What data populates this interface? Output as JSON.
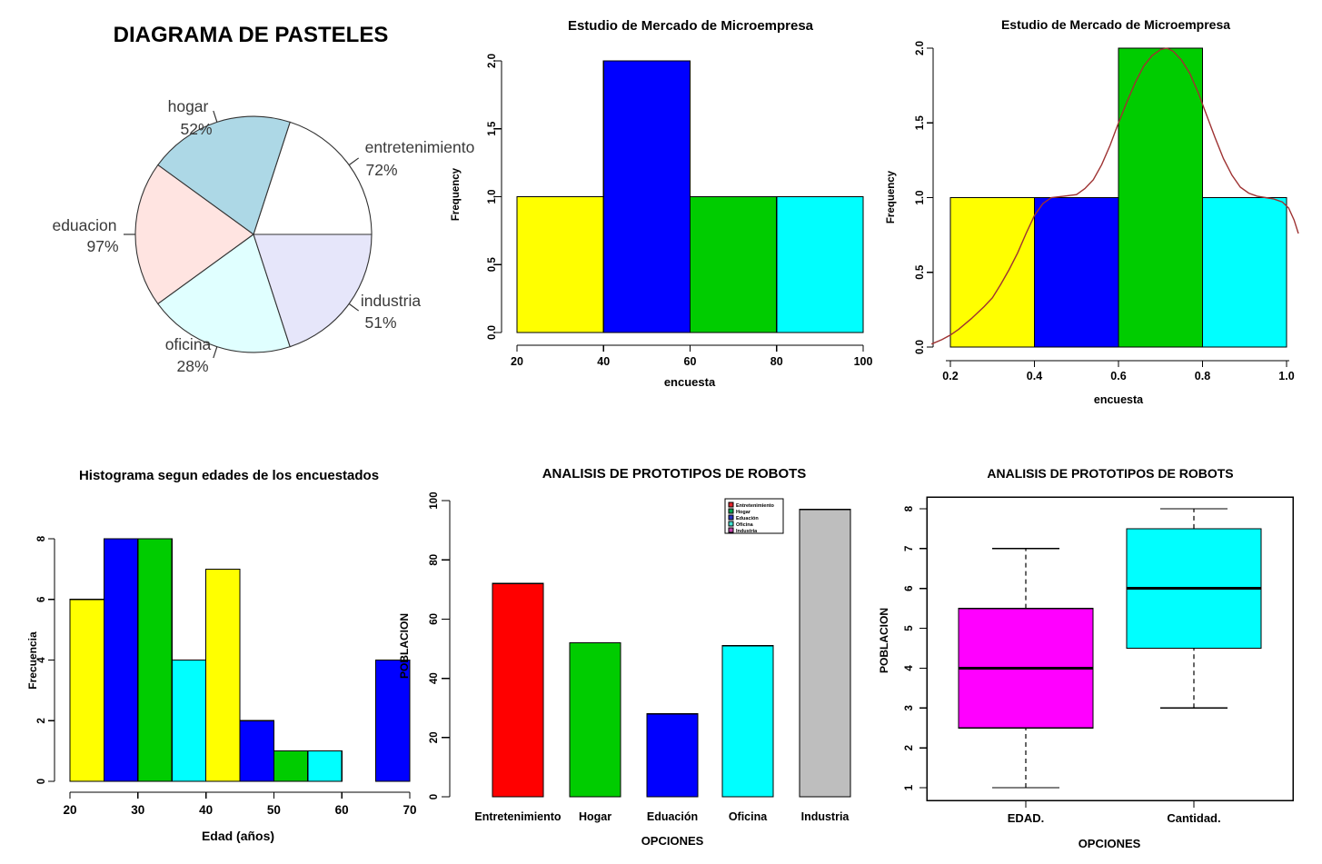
{
  "chart_data": [
    {
      "type": "pie",
      "title": "DIAGRAMA DE PASTELES",
      "labels": [
        "entretenimiento",
        "hogar",
        "eduacion",
        "oficina",
        "industria"
      ],
      "display_percents": [
        "72%",
        "52%",
        "97%",
        "28%",
        "51%"
      ],
      "values": [
        72,
        52,
        97,
        28,
        51
      ],
      "equal_slices": true,
      "colors": [
        "#FFFFFF",
        "#ADD8E6",
        "#FFE4E1",
        "#E0FFFF",
        "#E6E6FA"
      ]
    },
    {
      "type": "histogram",
      "title": "Estudio de Mercado de Microempresa",
      "xlabel": "encuesta",
      "ylabel": "Frequency",
      "bins": [
        [
          20,
          40,
          1
        ],
        [
          40,
          60,
          2
        ],
        [
          60,
          80,
          1
        ],
        [
          80,
          100,
          1
        ]
      ],
      "bar_colors": [
        "#FFFF00",
        "#0000FF",
        "#00CC00",
        "#00FFFF"
      ],
      "xticks": [
        "20",
        "40",
        "60",
        "80",
        "100"
      ],
      "xtick_values": [
        20,
        40,
        60,
        80,
        100
      ],
      "yticks": [
        "0.0",
        "0.5",
        "1.0",
        "1.5",
        "2.0"
      ],
      "ytick_values": [
        0,
        0.5,
        1,
        1.5,
        2
      ],
      "ylim": [
        0,
        2
      ]
    },
    {
      "type": "histogram-density",
      "title": "Estudio de Mercado de Microempresa",
      "xlabel": "encuesta",
      "ylabel": "Frequency",
      "bins": [
        [
          0.2,
          0.4,
          1
        ],
        [
          0.4,
          0.6,
          1
        ],
        [
          0.6,
          0.8,
          2
        ],
        [
          0.8,
          1.0,
          1
        ]
      ],
      "bar_colors": [
        "#FFFF00",
        "#0000FF",
        "#00CC00",
        "#00FFFF"
      ],
      "xticks": [
        "0.2",
        "0.4",
        "0.6",
        "0.8",
        "1.0"
      ],
      "xtick_values": [
        0.2,
        0.4,
        0.6,
        0.8,
        1.0
      ],
      "yticks": [
        "0.0",
        "0.5",
        "1.0",
        "1.5",
        "2.0"
      ],
      "ytick_values": [
        0,
        0.5,
        1,
        1.5,
        2
      ],
      "ylim": [
        0,
        2
      ],
      "density_color": "#9E3232",
      "density": [
        [
          0.155,
          0.02
        ],
        [
          0.18,
          0.05
        ],
        [
          0.2,
          0.08
        ],
        [
          0.22,
          0.12
        ],
        [
          0.25,
          0.19
        ],
        [
          0.28,
          0.27
        ],
        [
          0.3,
          0.33
        ],
        [
          0.32,
          0.42
        ],
        [
          0.34,
          0.52
        ],
        [
          0.36,
          0.63
        ],
        [
          0.38,
          0.76
        ],
        [
          0.4,
          0.88
        ],
        [
          0.42,
          0.96
        ],
        [
          0.44,
          1.0
        ],
        [
          0.47,
          1.01
        ],
        [
          0.5,
          1.02
        ],
        [
          0.52,
          1.06
        ],
        [
          0.54,
          1.12
        ],
        [
          0.56,
          1.22
        ],
        [
          0.58,
          1.35
        ],
        [
          0.6,
          1.5
        ],
        [
          0.62,
          1.64
        ],
        [
          0.64,
          1.77
        ],
        [
          0.66,
          1.88
        ],
        [
          0.68,
          1.95
        ],
        [
          0.7,
          1.99
        ],
        [
          0.715,
          2.0
        ],
        [
          0.73,
          1.98
        ],
        [
          0.75,
          1.92
        ],
        [
          0.77,
          1.83
        ],
        [
          0.79,
          1.7
        ],
        [
          0.81,
          1.55
        ],
        [
          0.83,
          1.4
        ],
        [
          0.85,
          1.26
        ],
        [
          0.87,
          1.15
        ],
        [
          0.89,
          1.07
        ],
        [
          0.91,
          1.03
        ],
        [
          0.93,
          1.01
        ],
        [
          0.95,
          1.0
        ],
        [
          0.97,
          0.99
        ],
        [
          0.99,
          0.97
        ],
        [
          1.005,
          0.93
        ],
        [
          1.018,
          0.85
        ],
        [
          1.028,
          0.76
        ]
      ]
    },
    {
      "type": "histogram",
      "title": "Histograma segun edades de los encuestados",
      "xlabel": "Edad (años)",
      "ylabel": "Frecuencia",
      "bins": [
        [
          20,
          25,
          6
        ],
        [
          25,
          30,
          8
        ],
        [
          30,
          35,
          8
        ],
        [
          35,
          40,
          4
        ],
        [
          40,
          45,
          7
        ],
        [
          45,
          50,
          2
        ],
        [
          50,
          55,
          1
        ],
        [
          55,
          60,
          1
        ],
        [
          60,
          65,
          0
        ],
        [
          65,
          70,
          4
        ]
      ],
      "bar_colors": [
        "#FFFF00",
        "#0000FF",
        "#00CC00",
        "#00FFFF",
        "#FFFF00",
        "#0000FF",
        "#00CC00",
        "#00FFFF",
        "#FFFF00",
        "#0000FF"
      ],
      "xticks": [
        "20",
        "30",
        "40",
        "50",
        "60",
        "70"
      ],
      "xtick_values": [
        20,
        30,
        40,
        50,
        60,
        70
      ],
      "yticks": [
        "0",
        "2",
        "4",
        "6",
        "8"
      ],
      "ytick_values": [
        0,
        2,
        4,
        6,
        8
      ],
      "ylim": [
        0,
        8
      ]
    },
    {
      "type": "bar",
      "title": "ANALISIS DE PROTOTIPOS DE ROBOTS",
      "xlabel": "OPCIONES",
      "ylabel": "POBLACION",
      "categories": [
        "Entretenimiento",
        "Hogar",
        "Eduación",
        "Oficina",
        "Industria"
      ],
      "values": [
        72,
        52,
        28,
        51,
        97
      ],
      "bar_colors": [
        "#FF0000",
        "#00CC00",
        "#0000FF",
        "#00FFFF",
        "#BEBEBE"
      ],
      "yticks": [
        "0",
        "20",
        "40",
        "60",
        "80",
        "100"
      ],
      "ytick_values": [
        0,
        20,
        40,
        60,
        80,
        100
      ],
      "ylim": [
        0,
        100
      ],
      "legend": {
        "labels": [
          "Entretenimiento",
          "Hogar",
          "Eduación",
          "Oficina",
          "Industria"
        ],
        "colors": [
          "#E3242B",
          "#00A550",
          "#2832C2",
          "#40E0D0",
          "#C344AB"
        ]
      }
    },
    {
      "type": "boxplot",
      "title": "ANALISIS DE PROTOTIPOS DE ROBOTS",
      "xlabel": "OPCIONES",
      "ylabel": "POBLACION",
      "categories": [
        "EDAD.",
        "Cantidad."
      ],
      "box_colors": [
        "#FF00FF",
        "#00FFFF"
      ],
      "stats": [
        {
          "min": 1,
          "q1": 2.5,
          "median": 4,
          "q3": 5.5,
          "max": 7
        },
        {
          "min": 3,
          "q1": 4.5,
          "median": 6,
          "q3": 7.5,
          "max": 8
        }
      ],
      "yticks": [
        "1",
        "2",
        "3",
        "4",
        "5",
        "6",
        "7",
        "8"
      ],
      "ytick_values": [
        1,
        2,
        3,
        4,
        5,
        6,
        7,
        8
      ],
      "ylim": [
        1,
        8
      ]
    }
  ]
}
